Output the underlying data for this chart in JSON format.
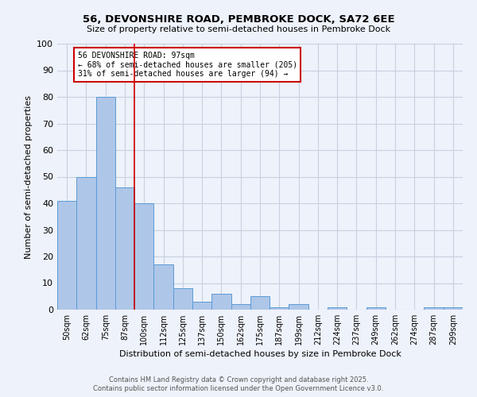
{
  "title": "56, DEVONSHIRE ROAD, PEMBROKE DOCK, SA72 6EE",
  "subtitle": "Size of property relative to semi-detached houses in Pembroke Dock",
  "xlabel": "Distribution of semi-detached houses by size in Pembroke Dock",
  "ylabel": "Number of semi-detached properties",
  "footer1": "Contains HM Land Registry data © Crown copyright and database right 2025.",
  "footer2": "Contains public sector information licensed under the Open Government Licence v3.0.",
  "annotation_title": "56 DEVONSHIRE ROAD: 97sqm",
  "annotation_line1": "← 68% of semi-detached houses are smaller (205)",
  "annotation_line2": "31% of semi-detached houses are larger (94) →",
  "property_size": 97,
  "categories": [
    "50sqm",
    "62sqm",
    "75sqm",
    "87sqm",
    "100sqm",
    "112sqm",
    "125sqm",
    "137sqm",
    "150sqm",
    "162sqm",
    "175sqm",
    "187sqm",
    "199sqm",
    "212sqm",
    "224sqm",
    "237sqm",
    "249sqm",
    "262sqm",
    "274sqm",
    "287sqm",
    "299sqm"
  ],
  "values": [
    41,
    50,
    80,
    46,
    40,
    17,
    8,
    3,
    6,
    2,
    5,
    1,
    2,
    0,
    1,
    0,
    1,
    0,
    0,
    1,
    1
  ],
  "bar_color": "#aec6e8",
  "bar_edge_color": "#5b9bd5",
  "vline_color": "#cc0000",
  "vline_x_idx": 3,
  "annotation_box_edge": "#cc0000",
  "ylim": [
    0,
    100
  ],
  "yticks": [
    0,
    10,
    20,
    30,
    40,
    50,
    60,
    70,
    80,
    90,
    100
  ],
  "grid_color": "#c8d0e0",
  "bg_color": "#eef2fa"
}
